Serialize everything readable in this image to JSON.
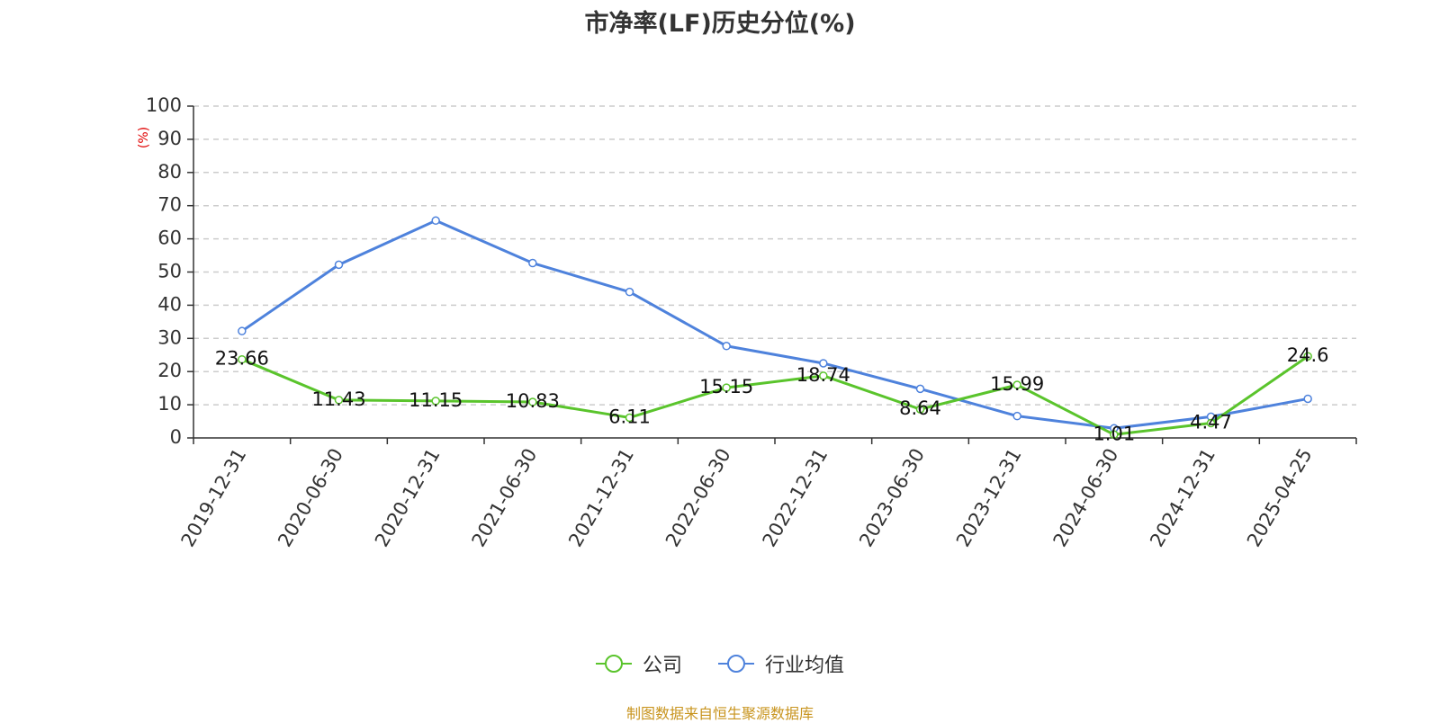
{
  "chart_data": {
    "type": "line",
    "title": "市净率(LF)历史分位(%)",
    "ylabel": "(%)",
    "xlabel": "",
    "ylim": [
      0,
      100
    ],
    "yticks": [
      0,
      10,
      20,
      30,
      40,
      50,
      60,
      70,
      80,
      90,
      100
    ],
    "categories": [
      "2019-12-31",
      "2020-06-30",
      "2020-12-31",
      "2021-06-30",
      "2021-12-31",
      "2022-06-30",
      "2022-12-31",
      "2023-06-30",
      "2023-12-31",
      "2024-06-30",
      "2024-12-31",
      "2025-04-25"
    ],
    "series": [
      {
        "name": "公司",
        "color": "#5ac42c",
        "values": [
          23.66,
          11.43,
          11.15,
          10.83,
          6.11,
          15.15,
          18.74,
          8.64,
          15.99,
          1.01,
          4.47,
          24.6
        ],
        "data_labels": [
          "23.66",
          "11.43",
          "11.15",
          "10.83",
          "6.11",
          "15.15",
          "18.74",
          "8.64",
          "15.99",
          "1.01",
          "4.47",
          "24.6"
        ]
      },
      {
        "name": "行业均值",
        "color": "#4e82dc",
        "values": [
          32.2,
          52.2,
          65.5,
          52.7,
          44.0,
          27.7,
          22.5,
          14.8,
          6.6,
          2.9,
          6.4,
          11.8
        ]
      }
    ],
    "grid": true,
    "grid_style": "dashed",
    "legend_position": "bottom-center"
  },
  "footer": {
    "source_note": "制图数据来自恒生聚源数据库"
  }
}
